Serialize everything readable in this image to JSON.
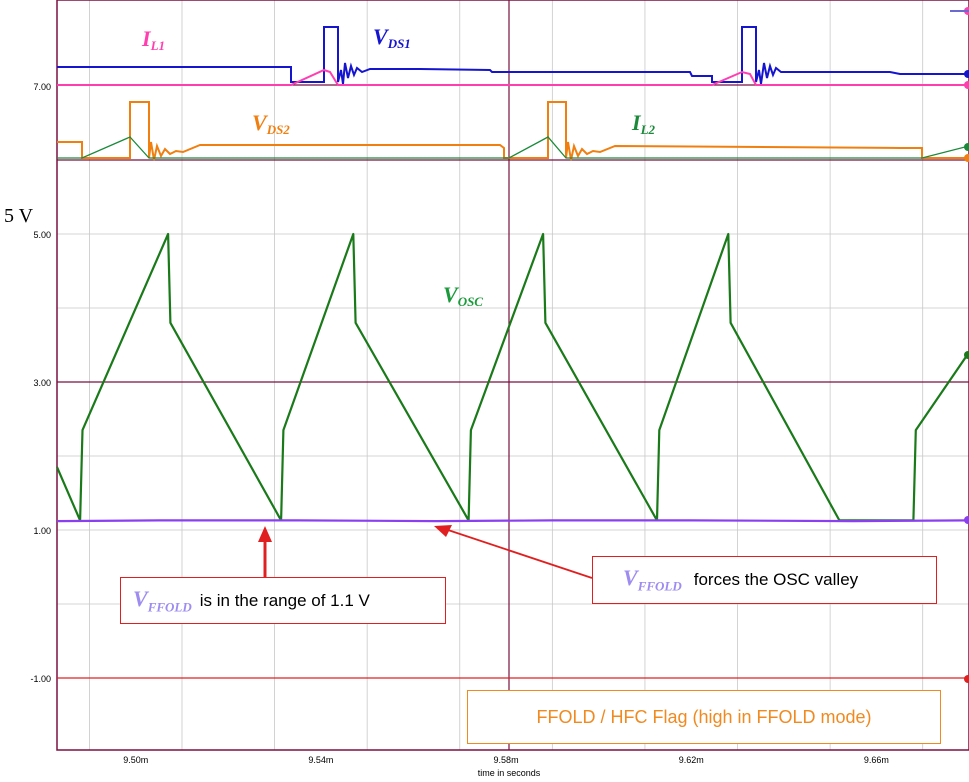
{
  "chart_data": {
    "type": "line",
    "xlabel": "time in seconds",
    "x_ticks": [
      "9.50m",
      "9.54m",
      "9.58m",
      "9.62m",
      "9.66m"
    ],
    "x_tick_values": [
      9.5,
      9.54,
      9.58,
      9.62,
      9.66
    ],
    "xlim": [
      9.483,
      9.68
    ],
    "top_pane_tick": "7.00",
    "y_ticks": [
      "5.00",
      "3.00",
      "1.00",
      "-1.00"
    ],
    "y_tick_values": [
      5,
      3,
      1,
      -1
    ],
    "ylim": [
      -1.9,
      5.5
    ],
    "y_side_label": "5 V",
    "series": [
      {
        "name": "V_OSC",
        "color": "#1a7a1a",
        "x": [
          9.483,
          9.488,
          9.488,
          9.4885,
          9.507,
          9.5075,
          9.5314,
          9.5314,
          9.5319,
          9.547,
          9.5475,
          9.5719,
          9.5719,
          9.5724,
          9.588,
          9.5885,
          9.6126,
          9.6126,
          9.6131,
          9.628,
          9.6285,
          9.652,
          9.652,
          9.6525,
          9.668,
          9.668,
          9.6685,
          9.68
        ],
        "y": [
          1.85,
          1.13,
          1.13,
          2.35,
          5.0,
          3.8,
          1.13,
          1.13,
          2.35,
          5.0,
          3.8,
          1.13,
          1.13,
          2.35,
          5.0,
          3.8,
          1.13,
          1.13,
          2.35,
          5.0,
          3.8,
          1.13,
          1.13,
          1.13,
          1.13,
          1.13,
          2.35,
          3.4
        ]
      },
      {
        "name": "V_FFOLD",
        "color": "#8a3ff0",
        "x": [
          9.483,
          9.505,
          9.535,
          9.565,
          9.59,
          9.62,
          9.655,
          9.68
        ],
        "y": [
          1.12,
          1.13,
          1.13,
          1.12,
          1.13,
          1.13,
          1.12,
          1.13
        ]
      },
      {
        "name": "FFOLD / HFC Flag",
        "color": "#e02020",
        "x": [
          9.483,
          9.68
        ],
        "y": [
          -1.0,
          -1.0
        ]
      }
    ],
    "top_pane": {
      "labels": [
        {
          "name": "I",
          "sub": "L1",
          "color": "#ff3fb0"
        },
        {
          "name": "V",
          "sub": "DS1",
          "color": "#1515d0"
        },
        {
          "name": "V",
          "sub": "DS2",
          "color": "#f07f10"
        },
        {
          "name": "I",
          "sub": "L2",
          "color": "#1a8a3a"
        }
      ]
    },
    "annotations": [
      {
        "var": "V",
        "sub": "FFOLD",
        "text": "is in the range of 1.1 V"
      },
      {
        "var": "V",
        "sub": "FFOLD",
        "text": "forces the OSC valley"
      },
      {
        "text": "FFOLD / HFC Flag (high in FFOLD mode)"
      }
    ]
  }
}
